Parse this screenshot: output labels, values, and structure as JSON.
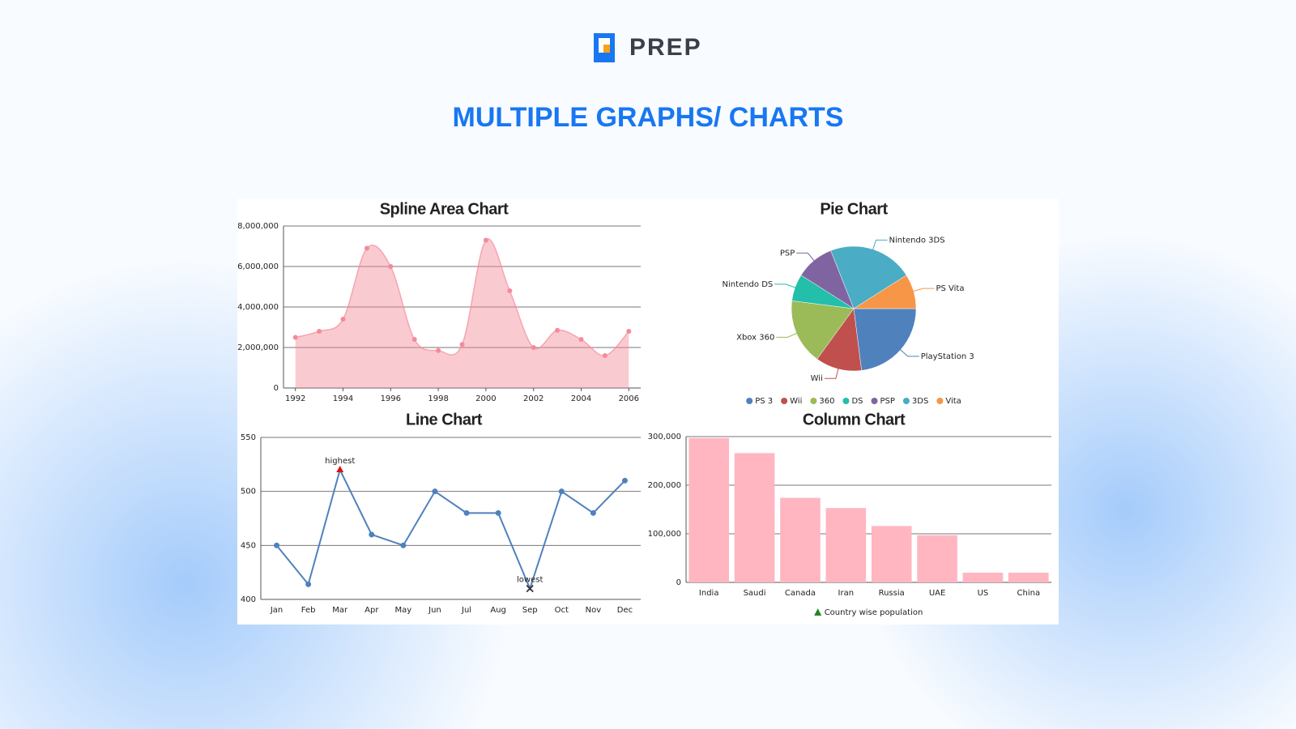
{
  "header": {
    "logo": "PREP",
    "title": "MULTIPLE GRAPHS/ CHARTS"
  },
  "chart_data": [
    {
      "type": "area",
      "title": "Spline Area Chart",
      "color": "#f58a9a",
      "grid": true,
      "x": [
        1992,
        1993,
        1994,
        1995,
        1996,
        1997,
        1998,
        1999,
        2000,
        2001,
        2002,
        2003,
        2004,
        2005,
        2006
      ],
      "values": [
        2500000,
        2800000,
        3400000,
        6900000,
        6000000,
        2400000,
        1850000,
        2150000,
        7300000,
        4800000,
        2000000,
        2850000,
        2400000,
        1600000,
        2800000
      ],
      "xlim": [
        1991.5,
        2006.5
      ],
      "xticks": [
        1992,
        1994,
        1996,
        1998,
        2000,
        2002,
        2004,
        2006
      ],
      "ylim": [
        0,
        8000000
      ],
      "yticks": [
        0,
        {
          "value": 2000000,
          "label": "2,000,000"
        },
        {
          "value": 4000000,
          "label": "4,000,000"
        },
        {
          "value": 6000000,
          "label": "6,000,000"
        },
        {
          "value": 8000000,
          "label": "8,000,000"
        }
      ]
    },
    {
      "type": "pie",
      "title": "Pie Chart",
      "categories": [
        "PlayStation 3",
        "Wii",
        "Xbox 360",
        "Nintendo DS",
        "PSP",
        "Nintendo 3DS",
        "PS Vita"
      ],
      "legend_labels": [
        "PS 3",
        "Wii",
        "360",
        "DS",
        "PSP",
        "3DS",
        "Vita"
      ],
      "values": [
        23,
        12,
        17,
        7,
        10,
        22,
        9
      ],
      "colors": [
        "#4f81bd",
        "#c0504d",
        "#9bbb59",
        "#23bfaa",
        "#8064a2",
        "#4aacc5",
        "#f79646"
      ]
    },
    {
      "type": "line",
      "title": "Line Chart",
      "color": "#4f81bd",
      "grid": true,
      "categories": [
        "Jan",
        "Feb",
        "Mar",
        "Apr",
        "May",
        "Jun",
        "Jul",
        "Aug",
        "Sep",
        "Oct",
        "Nov",
        "Dec"
      ],
      "values": [
        450,
        414,
        520,
        460,
        450,
        500,
        480,
        480,
        410,
        500,
        480,
        510
      ],
      "point_labels": [
        null,
        null,
        "highest",
        null,
        null,
        null,
        null,
        null,
        "lowest",
        null,
        null,
        null
      ],
      "special_markers": [
        null,
        null,
        {
          "shape": "triangle",
          "color": "#e01010"
        },
        null,
        null,
        null,
        null,
        null,
        {
          "shape": "cross",
          "color": "#333333"
        },
        null,
        null,
        null
      ],
      "ylim": [
        400,
        550
      ],
      "yticks": [
        400,
        450,
        500,
        550
      ]
    },
    {
      "type": "bar",
      "title": "Column Chart",
      "grid": true,
      "categories": [
        "India",
        "Saudi",
        "Canada",
        "Iran",
        "Russia",
        "UAE",
        "US",
        "China"
      ],
      "series": [
        {
          "name": "Country wise population",
          "color": "#ffb6c1",
          "values": [
            297000,
            266000,
            174000,
            153000,
            116000,
            97000,
            20000,
            20000
          ]
        }
      ],
      "legend_marker": {
        "shape": "triangle",
        "color": "#1f8a1f"
      },
      "ylim": [
        0,
        300000
      ],
      "yticks": [
        0,
        {
          "value": 100000,
          "label": "100,000"
        },
        {
          "value": 200000,
          "label": "200,000"
        },
        {
          "value": 300000,
          "label": "300,000"
        }
      ]
    }
  ]
}
